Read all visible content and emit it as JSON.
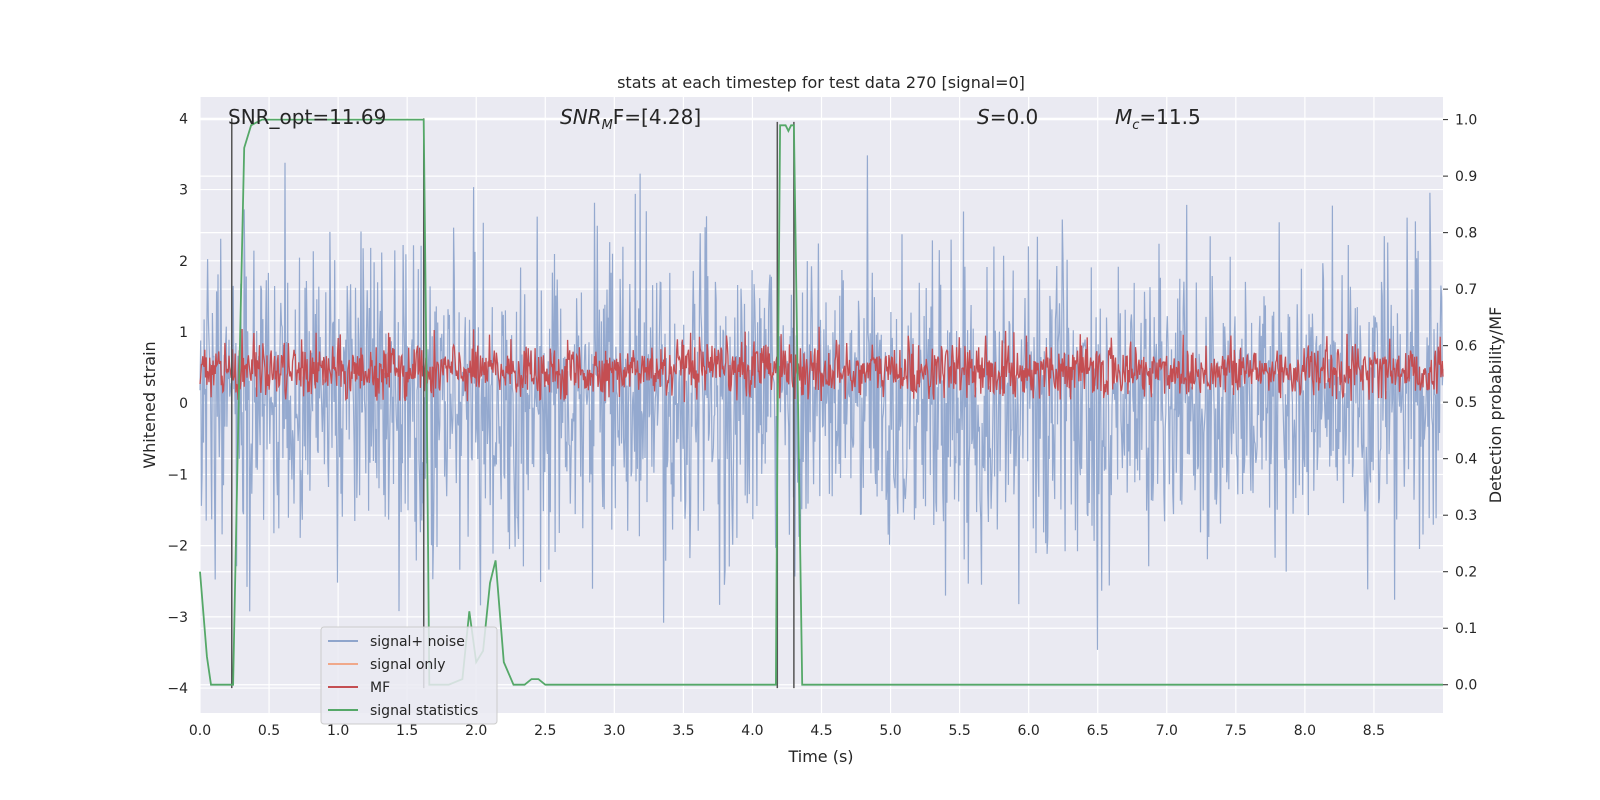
{
  "chart_data": {
    "type": "line",
    "title": "stats at each timestep for test data 270 [signal=0]",
    "xlabel": "Time (s)",
    "ylabel_left": "Whitened strain",
    "ylabel_right": "Detection probability/MF",
    "xlim": [
      0.0,
      9.0
    ],
    "ylim_left": [
      -4.35,
      4.3
    ],
    "ylim_right": [
      -0.05,
      1.04
    ],
    "x_ticks": [
      "0.0",
      "0.5",
      "1.0",
      "1.5",
      "2.0",
      "2.5",
      "3.0",
      "3.5",
      "4.0",
      "4.5",
      "5.0",
      "5.5",
      "6.0",
      "6.5",
      "7.0",
      "7.5",
      "8.0",
      "8.5"
    ],
    "x_tick_values": [
      0.0,
      0.5,
      1.0,
      1.5,
      2.0,
      2.5,
      3.0,
      3.5,
      4.0,
      4.5,
      5.0,
      5.5,
      6.0,
      6.5,
      7.0,
      7.5,
      8.0,
      8.5
    ],
    "y_left_ticks": [
      "−4",
      "−3",
      "−2",
      "−1",
      "0",
      "1",
      "2",
      "3",
      "4"
    ],
    "y_left_tick_values": [
      -4,
      -3,
      -2,
      -1,
      0,
      1,
      2,
      3,
      4
    ],
    "y_right_ticks": [
      "0.0",
      "0.1",
      "0.2",
      "0.3",
      "0.4",
      "0.5",
      "0.6",
      "0.7",
      "0.8",
      "0.9",
      "1.0"
    ],
    "y_right_tick_values": [
      0.0,
      0.1,
      0.2,
      0.3,
      0.4,
      0.5,
      0.6,
      0.7,
      0.8,
      0.9,
      1.0
    ],
    "grid": true,
    "legend_position": "lower-left",
    "annotations": {
      "snr_opt": "SNR_opt=11.69",
      "snr_mf_base": "SNR",
      "snr_mf_sub": "M",
      "snr_mf_rest": "F=[4.28]",
      "s_symbol": "S",
      "s_rest": "=0.0",
      "mc_symbol": "M",
      "mc_sub": "c",
      "mc_rest": "=11.5"
    },
    "series": [
      {
        "name": "signal+ noise",
        "color": "#8fa5cc",
        "axis": "left",
        "style": "noise, approx. within [-2.5, 2.6] with spikes to ±3.8"
      },
      {
        "name": "signal only",
        "color": "#f0a88a",
        "axis": "left",
        "values": []
      },
      {
        "name": "MF",
        "color": "#c44e52",
        "axis": "right",
        "style": "fluctuating band ~0.50 to 0.62"
      },
      {
        "name": "signal statistics",
        "color": "#55a868",
        "axis": "right",
        "x": [
          0.0,
          0.05,
          0.08,
          0.24,
          0.28,
          0.32,
          0.37,
          0.45,
          0.6,
          1.0,
          1.3,
          1.62,
          1.64,
          1.66,
          1.7,
          1.8,
          1.9,
          1.95,
          2.0,
          2.05,
          2.1,
          2.14,
          2.2,
          2.27,
          2.35,
          2.4,
          2.45,
          2.5,
          3.0,
          3.5,
          4.0,
          4.17,
          4.18,
          4.2,
          4.24,
          4.26,
          4.28,
          4.3,
          4.33,
          4.36,
          4.4,
          5.0,
          6.0,
          7.0,
          8.0,
          9.0
        ],
        "y": [
          0.2,
          0.05,
          0.0,
          0.0,
          0.5,
          0.95,
          0.99,
          1.0,
          1.0,
          1.0,
          1.0,
          1.0,
          0.55,
          0.0,
          0.0,
          0.0,
          0.01,
          0.13,
          0.04,
          0.06,
          0.18,
          0.22,
          0.04,
          0.0,
          0.0,
          0.01,
          0.01,
          0.0,
          0.0,
          0.0,
          0.0,
          0.0,
          0.4,
          0.99,
          0.99,
          0.98,
          0.99,
          0.99,
          0.5,
          0.0,
          0.0,
          0.0,
          0.0,
          0.0,
          0.0,
          0.0
        ]
      },
      {
        "name": "marker lines",
        "color": "#555555",
        "axis": "left",
        "x": [
          0.23,
          1.62,
          4.18,
          4.3
        ],
        "y_top": [
          4.0,
          4.0,
          3.95,
          3.95
        ],
        "y_bottom": [
          -4.0,
          -4.0,
          -4.0,
          -4.0
        ]
      }
    ]
  }
}
